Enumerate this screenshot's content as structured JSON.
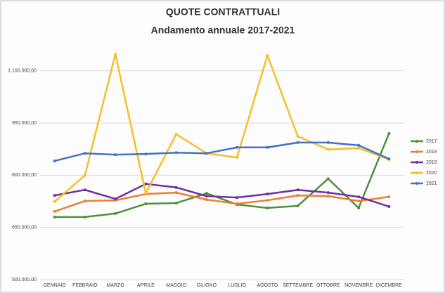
{
  "chart_data": {
    "type": "line",
    "title": "QUOTE CONTRATTUALI",
    "subtitle": "Andamento annuale 2017-2021",
    "categories": [
      "GENNAIO",
      "FEBBRAIO",
      "MARZO",
      "APRILE",
      "MAGGIO",
      "GIUGNO",
      "LUGLIO",
      "AGOSTO",
      "SETTEMBRE",
      "OTTOBRE",
      "NOVEMBRE",
      "DICEMBRE"
    ],
    "series": [
      {
        "name": "2017",
        "color": "#4e8f3a",
        "values": [
          680000,
          680000,
          690000,
          718000,
          720000,
          748000,
          716000,
          706000,
          712000,
          790000,
          706000,
          920000
        ]
      },
      {
        "name": "2018",
        "color": "#ed7d31",
        "values": [
          696000,
          726000,
          728000,
          746000,
          750000,
          730000,
          718000,
          728000,
          742000,
          740000,
          726000,
          738000
        ]
      },
      {
        "name": "2019",
        "color": "#7030a0",
        "values": [
          742000,
          758000,
          732000,
          775000,
          765000,
          740000,
          736000,
          746000,
          758000,
          750000,
          738000,
          710000
        ]
      },
      {
        "name": "2020",
        "color": "#f5bf2a",
        "values": [
          724000,
          800000,
          1148000,
          748000,
          918000,
          863000,
          851000,
          1144000,
          912000,
          874000,
          878000,
          845000
        ]
      },
      {
        "name": "2021",
        "color": "#4472c4",
        "values": [
          841000,
          863000,
          859000,
          861000,
          865000,
          863000,
          880000,
          880000,
          894000,
          894000,
          886000,
          847000
        ]
      }
    ],
    "ylim": [
      500000,
      1200000
    ],
    "yticks": [
      {
        "value": 500000,
        "label": "500.000,00"
      },
      {
        "value": 650000,
        "label": "650.000,00"
      },
      {
        "value": 800000,
        "label": "800.000,00"
      },
      {
        "value": 950000,
        "label": "950.000,00"
      },
      {
        "value": 1100000,
        "label": "1.100.000,00"
      }
    ],
    "grid": true
  }
}
